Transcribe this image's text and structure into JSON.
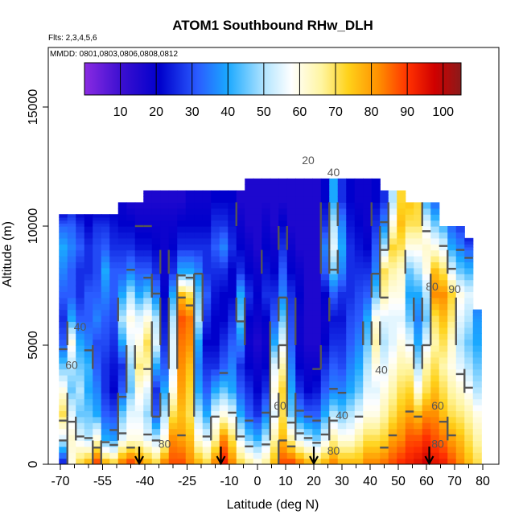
{
  "chart_data": {
    "type": "heatmap",
    "title": "ATOM1 Southbound RHw_DLH",
    "subtitle_flights": "Flts: 2,3,4,5,6",
    "subtitle_dates": "MMDD: 0801,0803,0806,0808,0812",
    "xlabel": "Latitude (deg N)",
    "ylabel": "Altitude (m)",
    "xlim": [
      -70,
      80
    ],
    "ylim": [
      0,
      17500
    ],
    "x_ticks": [
      -70,
      -55,
      -40,
      -25,
      -10,
      0,
      10,
      20,
      30,
      40,
      50,
      60,
      70,
      80
    ],
    "y_ticks": [
      0,
      5000,
      10000,
      15000
    ],
    "colorbar": {
      "range": [
        0,
        105
      ],
      "ticks": [
        10,
        20,
        30,
        40,
        50,
        60,
        70,
        80,
        90,
        100
      ]
    },
    "contour_levels": [
      20,
      40,
      60,
      80
    ],
    "contour_labels": [
      {
        "text": "20",
        "x": 18,
        "y": 12600
      },
      {
        "text": "40",
        "x": 27,
        "y": 12100
      },
      {
        "text": "40",
        "x": -63,
        "y": 5600
      },
      {
        "text": "60",
        "x": -66,
        "y": 4000
      },
      {
        "text": "80",
        "x": 62,
        "y": 7300
      },
      {
        "text": "40",
        "x": 44,
        "y": 3800
      },
      {
        "text": "60",
        "x": 64,
        "y": 2300
      },
      {
        "text": "40",
        "x": 30,
        "y": 1900
      },
      {
        "text": "60",
        "x": 8,
        "y": 2300
      },
      {
        "text": "80",
        "x": -33,
        "y": 700
      },
      {
        "text": "80",
        "x": 27,
        "y": 400
      },
      {
        "text": "80",
        "x": 64,
        "y": 700
      },
      {
        "text": "90",
        "x": 70,
        "y": 7200
      }
    ],
    "flight_markers_lat": [
      -42,
      -13,
      20,
      61
    ],
    "profiles": [
      {
        "lat": -69,
        "top": 10500,
        "rh": [
          25,
          55,
          70,
          60,
          45,
          30,
          25,
          30,
          35,
          40,
          30,
          20
        ]
      },
      {
        "lat": -66,
        "top": 10500,
        "rh": [
          60,
          62,
          55,
          45,
          50,
          60,
          40,
          30,
          30,
          35,
          30,
          25
        ]
      },
      {
        "lat": -63,
        "top": 10500,
        "rh": [
          70,
          55,
          45,
          50,
          45,
          40,
          30,
          25,
          25,
          30,
          25,
          20
        ]
      },
      {
        "lat": -60,
        "top": 10500,
        "rh": [
          75,
          50,
          45,
          40,
          42,
          35,
          30,
          30,
          25,
          25,
          20,
          20
        ]
      },
      {
        "lat": -57,
        "top": 10500,
        "rh": [
          85,
          60,
          40,
          35,
          30,
          28,
          35,
          30,
          28,
          28,
          25,
          20
        ]
      },
      {
        "lat": -54,
        "top": 10500,
        "rh": [
          75,
          40,
          30,
          25,
          25,
          28,
          30,
          35,
          40,
          30,
          25,
          20
        ]
      },
      {
        "lat": -51,
        "top": 10500,
        "rh": [
          70,
          38,
          28,
          20,
          22,
          25,
          28,
          30,
          30,
          25,
          22,
          20
        ]
      },
      {
        "lat": -48,
        "top": 11000,
        "rh": [
          80,
          55,
          45,
          30,
          25,
          40,
          50,
          40,
          30,
          25,
          20,
          18
        ]
      },
      {
        "lat": -45,
        "top": 11000,
        "rh": [
          85,
          60,
          55,
          45,
          48,
          55,
          60,
          50,
          35,
          25,
          20,
          15
        ]
      },
      {
        "lat": -42,
        "top": 11000,
        "rh": [
          80,
          60,
          55,
          60,
          68,
          60,
          55,
          40,
          30,
          22,
          18,
          15
        ]
      },
      {
        "lat": -39,
        "top": 11500,
        "rh": [
          75,
          55,
          48,
          55,
          65,
          70,
          60,
          45,
          30,
          22,
          18,
          15
        ]
      },
      {
        "lat": -36,
        "top": 11500,
        "rh": [
          70,
          50,
          30,
          25,
          40,
          55,
          50,
          35,
          25,
          20,
          18,
          15
        ]
      },
      {
        "lat": -33,
        "top": 11500,
        "rh": [
          80,
          60,
          50,
          40,
          30,
          25,
          22,
          20,
          18,
          18,
          18,
          15
        ]
      },
      {
        "lat": -30,
        "top": 11500,
        "rh": [
          85,
          80,
          70,
          60,
          55,
          55,
          50,
          40,
          25,
          20,
          18,
          15
        ]
      },
      {
        "lat": -27,
        "top": 11500,
        "rh": [
          85,
          78,
          75,
          78,
          80,
          82,
          85,
          75,
          40,
          25,
          20,
          15
        ]
      },
      {
        "lat": -24,
        "top": 11500,
        "rh": [
          80,
          75,
          70,
          72,
          75,
          80,
          82,
          70,
          40,
          25,
          20,
          18
        ]
      },
      {
        "lat": -21,
        "top": 11500,
        "rh": [
          75,
          60,
          50,
          40,
          35,
          40,
          50,
          45,
          35,
          25,
          20,
          18
        ]
      },
      {
        "lat": -18,
        "top": 11500,
        "rh": [
          70,
          55,
          40,
          30,
          25,
          20,
          25,
          30,
          25,
          25,
          20,
          18
        ]
      },
      {
        "lat": -15,
        "top": 11500,
        "rh": [
          80,
          65,
          55,
          40,
          25,
          20,
          20,
          22,
          25,
          30,
          25,
          20
        ]
      },
      {
        "lat": -12,
        "top": 11500,
        "rh": [
          90,
          80,
          60,
          45,
          30,
          25,
          20,
          20,
          25,
          35,
          25,
          20
        ]
      },
      {
        "lat": -9,
        "top": 11500,
        "rh": [
          80,
          70,
          55,
          40,
          35,
          30,
          25,
          20,
          20,
          25,
          22,
          20
        ]
      },
      {
        "lat": -6,
        "top": 11500,
        "rh": [
          70,
          55,
          40,
          30,
          25,
          35,
          45,
          40,
          25,
          20,
          18,
          15
        ]
      },
      {
        "lat": -3,
        "top": 12000,
        "rh": [
          65,
          45,
          30,
          25,
          20,
          18,
          20,
          25,
          20,
          18,
          15,
          15
        ]
      },
      {
        "lat": 0,
        "top": 12000,
        "rh": [
          60,
          40,
          25,
          20,
          18,
          15,
          18,
          20,
          18,
          15,
          15,
          15
        ]
      },
      {
        "lat": 3,
        "top": 12000,
        "rh": [
          65,
          50,
          35,
          25,
          20,
          18,
          20,
          25,
          22,
          20,
          18,
          15
        ]
      },
      {
        "lat": 6,
        "top": 12000,
        "rh": [
          75,
          65,
          55,
          60,
          55,
          40,
          30,
          25,
          20,
          18,
          15,
          15
        ]
      },
      {
        "lat": 9,
        "top": 12500,
        "rh": [
          85,
          75,
          70,
          72,
          65,
          55,
          45,
          35,
          30,
          25,
          20,
          15
        ]
      },
      {
        "lat": 12,
        "top": 12500,
        "rh": [
          85,
          65,
          45,
          40,
          35,
          30,
          28,
          25,
          20,
          18,
          15,
          15
        ]
      },
      {
        "lat": 15,
        "top": 12500,
        "rh": [
          80,
          55,
          35,
          25,
          20,
          18,
          18,
          20,
          18,
          15,
          15,
          15
        ]
      },
      {
        "lat": 18,
        "top": 12500,
        "rh": [
          75,
          50,
          30,
          20,
          18,
          15,
          15,
          15,
          15,
          15,
          15,
          15
        ]
      },
      {
        "lat": 21,
        "top": 12500,
        "rh": [
          70,
          45,
          30,
          22,
          18,
          15,
          15,
          15,
          15,
          15,
          15,
          15
        ]
      },
      {
        "lat": 24,
        "top": 13000,
        "rh": [
          75,
          55,
          40,
          30,
          25,
          20,
          18,
          20,
          30,
          35,
          25,
          20
        ]
      },
      {
        "lat": 27,
        "top": 13500,
        "rh": [
          80,
          65,
          50,
          35,
          30,
          25,
          22,
          30,
          45,
          55,
          50,
          40
        ]
      },
      {
        "lat": 30,
        "top": 12500,
        "rh": [
          75,
          60,
          45,
          35,
          28,
          25,
          22,
          25,
          35,
          40,
          35,
          25
        ]
      },
      {
        "lat": 33,
        "top": 12500,
        "rh": [
          75,
          60,
          50,
          40,
          35,
          30,
          28,
          25,
          25,
          25,
          22,
          20
        ]
      },
      {
        "lat": 36,
        "top": 12500,
        "rh": [
          75,
          65,
          55,
          45,
          40,
          35,
          30,
          28,
          25,
          22,
          20,
          18
        ]
      },
      {
        "lat": 39,
        "top": 12000,
        "rh": [
          80,
          70,
          60,
          55,
          50,
          45,
          40,
          30,
          25,
          20,
          18,
          18
        ]
      },
      {
        "lat": 42,
        "top": 12000,
        "rh": [
          80,
          70,
          60,
          55,
          60,
          65,
          60,
          45,
          35,
          30,
          25,
          20
        ]
      },
      {
        "lat": 45,
        "top": 11500,
        "rh": [
          82,
          72,
          65,
          60,
          55,
          50,
          55,
          65,
          70,
          50,
          35,
          25
        ]
      },
      {
        "lat": 48,
        "top": 11500,
        "rh": [
          85,
          78,
          70,
          65,
          60,
          55,
          55,
          60,
          65,
          72,
          60,
          50
        ]
      },
      {
        "lat": 51,
        "top": 11500,
        "rh": [
          88,
          80,
          75,
          70,
          65,
          60,
          55,
          60,
          62,
          70,
          75,
          72
        ]
      },
      {
        "lat": 54,
        "top": 11000,
        "rh": [
          90,
          85,
          78,
          72,
          65,
          55,
          45,
          40,
          45,
          60,
          70,
          75
        ]
      },
      {
        "lat": 57,
        "top": 11000,
        "rh": [
          92,
          85,
          75,
          60,
          50,
          40,
          35,
          40,
          50,
          60,
          70,
          72
        ]
      },
      {
        "lat": 60,
        "top": 11000,
        "rh": [
          95,
          88,
          80,
          70,
          65,
          55,
          45,
          50,
          60,
          62,
          55,
          40
        ]
      },
      {
        "lat": 63,
        "top": 11000,
        "rh": [
          92,
          85,
          80,
          75,
          70,
          65,
          70,
          80,
          75,
          60,
          45,
          30
        ]
      },
      {
        "lat": 66,
        "top": 10000,
        "rh": [
          90,
          82,
          75,
          70,
          65,
          70,
          75,
          80,
          70,
          55,
          40,
          30
        ]
      },
      {
        "lat": 69,
        "top": 10000,
        "rh": [
          85,
          78,
          70,
          65,
          60,
          62,
          68,
          72,
          55,
          40,
          30,
          25
        ]
      },
      {
        "lat": 72,
        "top": 10000,
        "rh": [
          80,
          75,
          68,
          62,
          55,
          50,
          55,
          60,
          45,
          35,
          25,
          20
        ]
      },
      {
        "lat": 75,
        "top": 9500,
        "rh": [
          75,
          70,
          65,
          58,
          50,
          45,
          50,
          55,
          42,
          30,
          22,
          18
        ]
      },
      {
        "lat": 78,
        "top": 6500,
        "rh": [
          70,
          65,
          60,
          50,
          45,
          40,
          38,
          35,
          30,
          25,
          20,
          18
        ]
      }
    ]
  }
}
